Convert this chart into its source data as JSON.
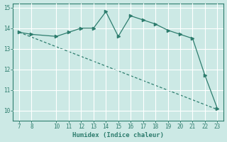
{
  "x": [
    7,
    8,
    10,
    11,
    12,
    13,
    14,
    15,
    16,
    17,
    18,
    19,
    20,
    21,
    22,
    23
  ],
  "y": [
    13.8,
    13.7,
    13.6,
    13.8,
    14.0,
    14.0,
    14.8,
    13.6,
    14.6,
    14.4,
    14.2,
    13.9,
    13.7,
    13.5,
    11.7,
    10.1
  ],
  "trend_x": [
    7,
    23
  ],
  "trend_y": [
    13.8,
    10.05
  ],
  "xlabel": "Humidex (Indice chaleur)",
  "xlim": [
    6.5,
    23.5
  ],
  "ylim": [
    9.5,
    15.2
  ],
  "xticks": [
    7,
    8,
    10,
    11,
    12,
    13,
    14,
    15,
    16,
    17,
    18,
    19,
    20,
    21,
    22,
    23
  ],
  "yticks": [
    10,
    11,
    12,
    13,
    14,
    15
  ],
  "line_color": "#2e7d6e",
  "bg_color": "#cce9e5",
  "grid_color": "#ffffff",
  "tick_label_color": "#2e7d6e",
  "font_name": "monospace",
  "figsize": [
    3.2,
    2.0
  ],
  "dpi": 100
}
